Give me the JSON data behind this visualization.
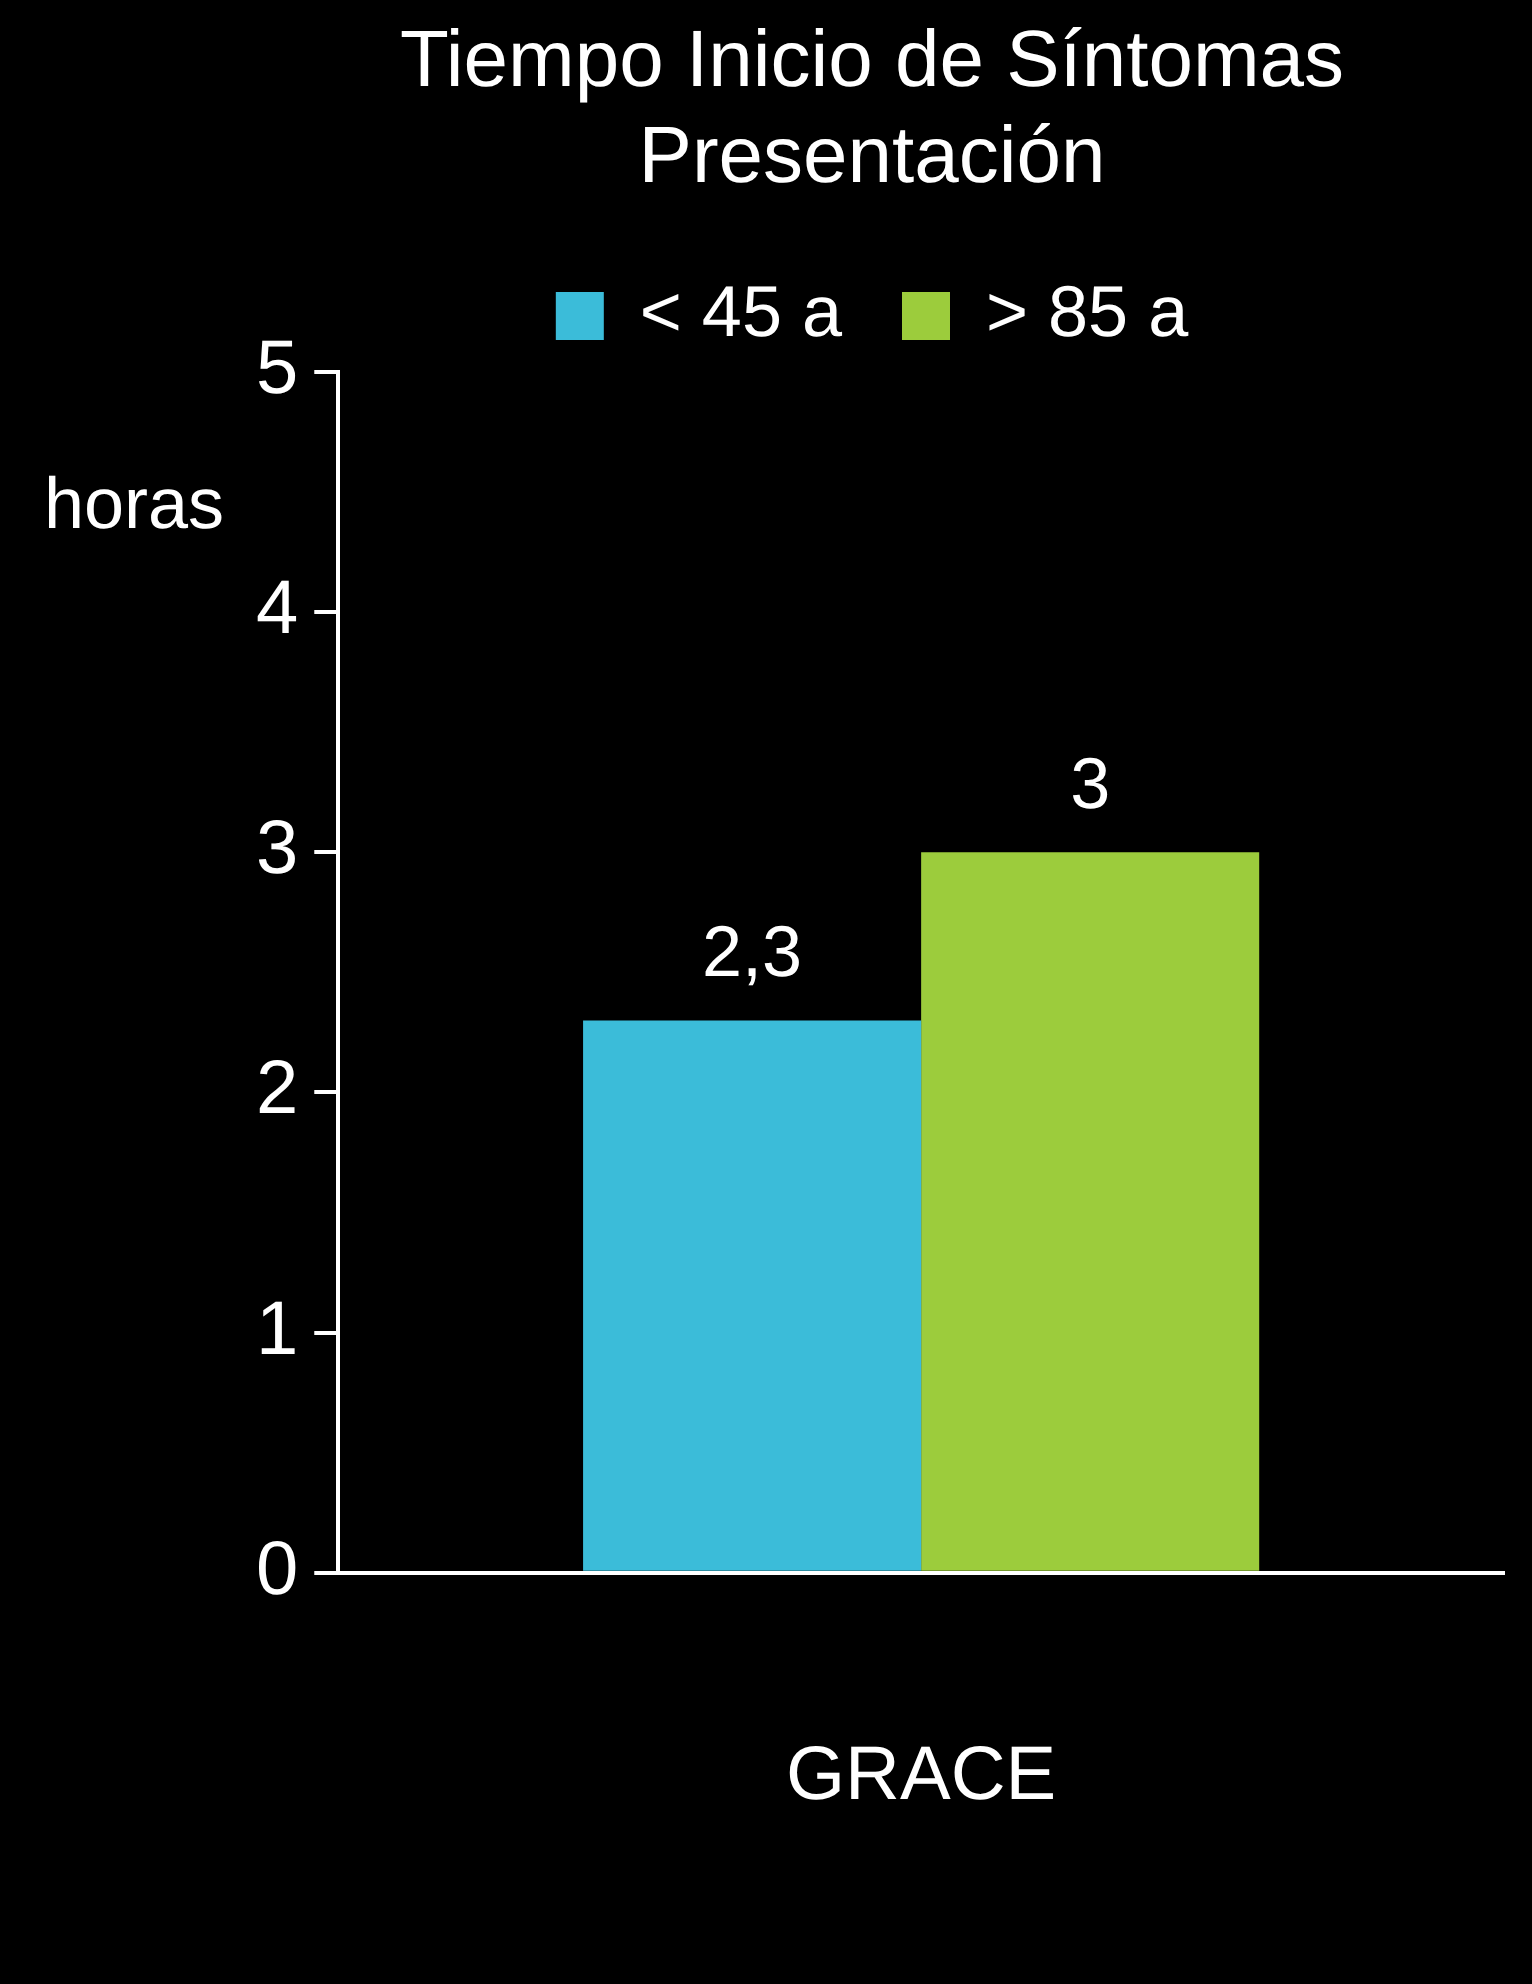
{
  "chart_data": {
    "type": "bar",
    "title": [
      "Tiempo Inicio de Síntomas",
      "Presentación"
    ],
    "ylabel": "horas",
    "categories": [
      "GRACE"
    ],
    "series": [
      {
        "name": "< 45 a",
        "color": "#3bbcd9",
        "values": [
          2.3
        ],
        "value_labels": [
          "2,3"
        ]
      },
      {
        "name": "> 85 a",
        "color": "#9ccc3c",
        "values": [
          3
        ],
        "value_labels": [
          "3"
        ]
      }
    ],
    "ylim": [
      0,
      5
    ],
    "yticks": [
      0,
      1,
      2,
      3,
      4,
      5
    ],
    "legend": "top"
  }
}
